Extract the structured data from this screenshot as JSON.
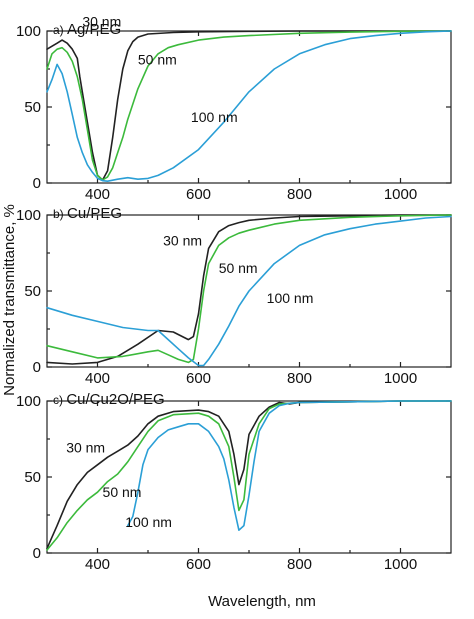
{
  "figure": {
    "ylabel": "Normalized transmittance, %",
    "xlabel": "Wavelength, nm"
  },
  "colors": {
    "30nm": "#222222",
    "50nm": "#3cba3c",
    "100nm": "#2b9fd6"
  },
  "chart_data": [
    {
      "type": "line",
      "panel_label": "a)",
      "title": "Ag/PEG",
      "xlim": [
        300,
        1100
      ],
      "ylim": [
        0,
        100
      ],
      "xticks": [
        "400",
        "600",
        "800",
        "1000"
      ],
      "yticks": [
        "0",
        "50",
        "100"
      ],
      "annotations": [
        {
          "text": "30 nm",
          "x": 370,
          "y": 103
        },
        {
          "text": "50 nm",
          "x": 480,
          "y": 78
        },
        {
          "text": "100 nm",
          "x": 585,
          "y": 40
        }
      ],
      "series": [
        {
          "key": "30nm",
          "x": [
            300,
            310,
            320,
            330,
            340,
            350,
            360,
            365,
            370,
            380,
            390,
            400,
            410,
            420,
            430,
            440,
            450,
            460,
            470,
            480,
            500,
            550,
            600,
            700,
            800,
            1000,
            1100
          ],
          "y": [
            88,
            90,
            92,
            94,
            92,
            88,
            82,
            70,
            60,
            40,
            20,
            5,
            2,
            8,
            30,
            55,
            75,
            87,
            93,
            96,
            98,
            99,
            99.5,
            99.8,
            100,
            100,
            100
          ]
        },
        {
          "key": "50nm",
          "x": [
            300,
            310,
            320,
            330,
            340,
            350,
            360,
            370,
            380,
            390,
            400,
            410,
            420,
            430,
            440,
            450,
            460,
            480,
            500,
            520,
            540,
            560,
            600,
            650,
            700,
            800,
            900,
            1000,
            1100
          ],
          "y": [
            75,
            85,
            88,
            89,
            86,
            80,
            70,
            55,
            35,
            15,
            5,
            2,
            4,
            10,
            20,
            30,
            42,
            62,
            77,
            85,
            89,
            91,
            94,
            96,
            97,
            98.5,
            99.3,
            99.8,
            100
          ]
        },
        {
          "key": "100nm",
          "x": [
            300,
            310,
            320,
            330,
            340,
            350,
            360,
            370,
            380,
            390,
            400,
            410,
            420,
            440,
            460,
            480,
            500,
            520,
            550,
            600,
            650,
            700,
            750,
            800,
            850,
            900,
            950,
            1000,
            1050,
            1100
          ],
          "y": [
            60,
            68,
            78,
            72,
            60,
            45,
            30,
            20,
            12,
            7,
            3,
            1.5,
            1.2,
            2.5,
            3.5,
            2.5,
            3,
            5,
            10,
            22,
            40,
            60,
            75,
            85,
            91,
            95,
            97,
            98.5,
            99.5,
            100
          ]
        }
      ]
    },
    {
      "type": "line",
      "panel_label": "b)",
      "title": "Cu/PEG",
      "xlim": [
        300,
        1100
      ],
      "ylim": [
        0,
        100
      ],
      "xticks": [
        "400",
        "600",
        "800",
        "1000"
      ],
      "yticks": [
        "0",
        "50",
        "100"
      ],
      "annotations": [
        {
          "text": "30 nm",
          "x": 530,
          "y": 80
        },
        {
          "text": "50 nm",
          "x": 640,
          "y": 62
        },
        {
          "text": "100 nm",
          "x": 735,
          "y": 42
        }
      ],
      "series": [
        {
          "key": "30nm",
          "x": [
            300,
            350,
            400,
            440,
            480,
            520,
            550,
            580,
            590,
            600,
            610,
            620,
            640,
            660,
            680,
            700,
            750,
            800,
            900,
            1000,
            1100
          ],
          "y": [
            3,
            2,
            3,
            7,
            15,
            24,
            23,
            18,
            20,
            35,
            60,
            78,
            89,
            93,
            95,
            96.5,
            98,
            99,
            99.5,
            100,
            100
          ]
        },
        {
          "key": "50nm",
          "x": [
            300,
            350,
            400,
            450,
            500,
            520,
            540,
            560,
            580,
            590,
            600,
            610,
            620,
            640,
            660,
            680,
            700,
            750,
            800,
            900,
            1000,
            1100
          ],
          "y": [
            14,
            10,
            6,
            7,
            10,
            11,
            8,
            5,
            3,
            5,
            25,
            50,
            68,
            80,
            85,
            88,
            90,
            94,
            96.5,
            98.5,
            99.5,
            100
          ]
        },
        {
          "key": "100nm",
          "x": [
            300,
            350,
            400,
            450,
            500,
            520,
            540,
            560,
            580,
            600,
            610,
            620,
            640,
            660,
            680,
            700,
            750,
            800,
            850,
            900,
            950,
            1000,
            1050,
            1100
          ],
          "y": [
            39,
            34,
            30,
            26,
            24,
            24,
            18,
            12,
            6,
            1,
            1,
            5,
            15,
            27,
            40,
            50,
            68,
            80,
            87,
            91,
            94,
            96,
            98,
            99
          ]
        }
      ]
    },
    {
      "type": "line",
      "panel_label": "c)",
      "title": "Cu/Cu2O/PEG",
      "xlim": [
        300,
        1100
      ],
      "ylim": [
        0,
        100
      ],
      "xticks": [
        "400",
        "600",
        "800",
        "1000"
      ],
      "yticks": [
        "0",
        "50",
        "100"
      ],
      "annotations": [
        {
          "text": "30 nm",
          "x": 338,
          "y": 66
        },
        {
          "text": "50 nm",
          "x": 410,
          "y": 37
        },
        {
          "text": "100 nm",
          "x": 455,
          "y": 17
        }
      ],
      "series": [
        {
          "key": "30nm",
          "x": [
            300,
            320,
            340,
            360,
            380,
            400,
            420,
            440,
            460,
            480,
            500,
            520,
            550,
            600,
            620,
            640,
            660,
            670,
            680,
            690,
            700,
            720,
            740,
            760,
            780,
            800,
            900,
            1000,
            1100
          ],
          "y": [
            3,
            18,
            34,
            45,
            53,
            58,
            63,
            67,
            71,
            77,
            85,
            90,
            93,
            94,
            93,
            90,
            80,
            65,
            45,
            55,
            78,
            90,
            96,
            99,
            98,
            99,
            99.5,
            100,
            100
          ]
        },
        {
          "key": "50nm",
          "x": [
            300,
            320,
            340,
            360,
            380,
            400,
            420,
            440,
            460,
            480,
            500,
            520,
            550,
            600,
            620,
            640,
            660,
            670,
            680,
            690,
            700,
            720,
            740,
            760,
            780,
            800,
            900,
            1000,
            1100
          ],
          "y": [
            2,
            10,
            20,
            28,
            35,
            40,
            47,
            52,
            60,
            70,
            80,
            87,
            91,
            92,
            90,
            85,
            70,
            50,
            28,
            35,
            65,
            85,
            95,
            98,
            98.5,
            99,
            99.5,
            100,
            100
          ]
        },
        {
          "key": "100nm",
          "x": [
            460,
            470,
            480,
            490,
            500,
            520,
            540,
            560,
            580,
            600,
            620,
            640,
            650,
            660,
            670,
            680,
            690,
            700,
            710,
            720,
            740,
            760,
            780,
            800,
            900,
            1000,
            1100
          ],
          "y": [
            18,
            24,
            40,
            58,
            68,
            76,
            81,
            83,
            85,
            85,
            80,
            70,
            62,
            48,
            30,
            15,
            18,
            38,
            60,
            80,
            92,
            97,
            98.5,
            99,
            99.5,
            100,
            100
          ]
        }
      ]
    }
  ]
}
